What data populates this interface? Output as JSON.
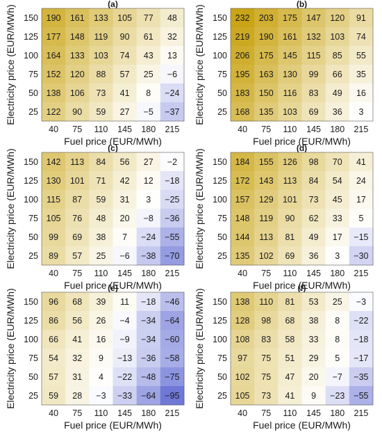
{
  "figure": {
    "xlabel": "Fuel price (EUR/MWh)",
    "ylabel": "Electricity price (EUR/MWh)"
  },
  "chart_data": [
    {
      "type": "heatmap",
      "title": "(a)",
      "x": [
        40,
        75,
        110,
        145,
        180,
        215
      ],
      "y": [
        150,
        125,
        100,
        75,
        50,
        25
      ],
      "values": [
        [
          190,
          161,
          133,
          105,
          77,
          48
        ],
        [
          177,
          148,
          119,
          90,
          61,
          32
        ],
        [
          164,
          133,
          103,
          74,
          43,
          13
        ],
        [
          152,
          120,
          88,
          57,
          25,
          -6
        ],
        [
          138,
          106,
          73,
          41,
          8,
          -24
        ],
        [
          122,
          90,
          59,
          27,
          -5,
          -37
        ]
      ],
      "xlabel": "Fuel price (EUR/MWh)",
      "ylabel": "Electricity price (EUR/MWh)"
    },
    {
      "type": "heatmap",
      "title": "(b)",
      "x": [
        40,
        75,
        110,
        145,
        180,
        215
      ],
      "y": [
        150,
        125,
        100,
        75,
        50,
        25
      ],
      "values": [
        [
          232,
          203,
          175,
          147,
          120,
          91
        ],
        [
          219,
          190,
          161,
          132,
          103,
          74
        ],
        [
          206,
          175,
          145,
          115,
          85,
          55
        ],
        [
          195,
          163,
          130,
          99,
          66,
          35
        ],
        [
          183,
          150,
          116,
          83,
          49,
          16
        ],
        [
          168,
          135,
          103,
          69,
          36,
          3
        ]
      ],
      "xlabel": "Fuel price (EUR/MWh)",
      "ylabel": "Electricity price (EUR/MWh)"
    },
    {
      "type": "heatmap",
      "title": "(c)",
      "x": [
        40,
        75,
        110,
        145,
        180,
        215
      ],
      "y": [
        150,
        125,
        100,
        75,
        50,
        25
      ],
      "values": [
        [
          142,
          113,
          84,
          56,
          27,
          -2
        ],
        [
          130,
          101,
          71,
          42,
          12,
          -18
        ],
        [
          115,
          87,
          59,
          31,
          3,
          -25
        ],
        [
          105,
          76,
          48,
          20,
          -8,
          -36
        ],
        [
          99,
          69,
          38,
          7,
          -24,
          -55
        ],
        [
          89,
          57,
          25,
          -6,
          -38,
          -70
        ]
      ],
      "xlabel": "Fuel price (EUR/MWh)",
      "ylabel": "Electricity price (EUR/MWh)"
    },
    {
      "type": "heatmap",
      "title": "(d)",
      "x": [
        40,
        75,
        110,
        145,
        180,
        215
      ],
      "y": [
        150,
        125,
        100,
        75,
        50,
        25
      ],
      "values": [
        [
          184,
          155,
          126,
          98,
          70,
          41
        ],
        [
          172,
          143,
          113,
          84,
          54,
          24
        ],
        [
          157,
          129,
          101,
          73,
          45,
          17
        ],
        [
          148,
          119,
          90,
          62,
          33,
          5
        ],
        [
          144,
          113,
          81,
          49,
          17,
          -15
        ],
        [
          135,
          102,
          69,
          36,
          3,
          -30
        ]
      ],
      "xlabel": "Fuel price (EUR/MWh)",
      "ylabel": "Electricity price (EUR/MWh)"
    },
    {
      "type": "heatmap",
      "title": "(e)",
      "x": [
        40,
        75,
        110,
        145,
        180,
        215
      ],
      "y": [
        150,
        125,
        100,
        75,
        50,
        25
      ],
      "values": [
        [
          96,
          68,
          39,
          11,
          -18,
          -46
        ],
        [
          86,
          56,
          26,
          -4,
          -34,
          -64
        ],
        [
          66,
          41,
          16,
          -9,
          -34,
          -60
        ],
        [
          54,
          32,
          9,
          -13,
          -36,
          -58
        ],
        [
          57,
          31,
          4,
          -22,
          -48,
          -75
        ],
        [
          59,
          28,
          -3,
          -33,
          -64,
          -95
        ]
      ],
      "xlabel": "Fuel price (EUR/MWh)",
      "ylabel": "Electricity price (EUR/MWh)"
    },
    {
      "type": "heatmap",
      "title": "(f)",
      "x": [
        40,
        75,
        110,
        145,
        180,
        215
      ],
      "y": [
        150,
        125,
        100,
        75,
        50,
        25
      ],
      "values": [
        [
          138,
          110,
          81,
          53,
          25,
          -3
        ],
        [
          128,
          98,
          68,
          38,
          8,
          -22
        ],
        [
          108,
          83,
          58,
          33,
          8,
          -18
        ],
        [
          97,
          75,
          51,
          29,
          5,
          -17
        ],
        [
          102,
          75,
          47,
          20,
          -7,
          -35
        ],
        [
          105,
          73,
          41,
          9,
          -23,
          -55
        ]
      ],
      "xlabel": "Fuel price (EUR/MWh)",
      "ylabel": "Electricity price (EUR/MWh)"
    }
  ],
  "colors": {
    "positive_max": "#c9a415",
    "zero": "#ffffff",
    "negative_max": "#6f78d6",
    "text": "#1a1a1a",
    "frame": "#555555"
  },
  "color_scale": {
    "vmax": 232,
    "vmin": -95
  }
}
